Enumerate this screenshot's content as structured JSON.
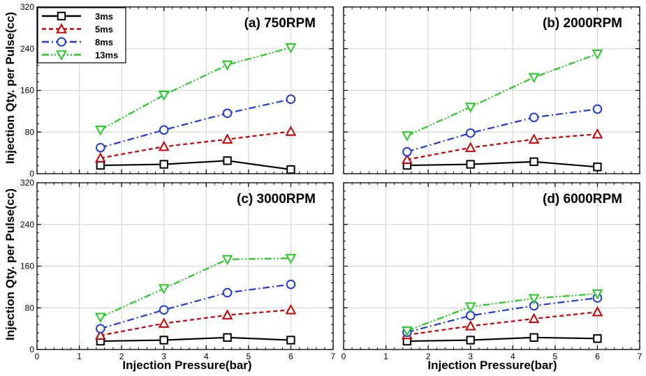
{
  "figure": {
    "ylabel": "Injection Qty. per Pulse(cc)",
    "xlabel": "Injection Pressure(bar)"
  },
  "legend": {
    "placement": "top-left of panel (a)",
    "entries": [
      {
        "label": "3ms",
        "color": "#000000",
        "marker": "square",
        "dash": "solid"
      },
      {
        "label": "5ms",
        "color": "#cc0000",
        "marker": "triangle-up",
        "dash": "dashed"
      },
      {
        "label": "8ms",
        "color": "#1f3bd8",
        "marker": "circle",
        "dash": "dashdot"
      },
      {
        "label": "13ms",
        "color": "#22cc22",
        "marker": "triangle-down",
        "dash": "dashdotdot"
      }
    ]
  },
  "chart_data": [
    {
      "type": "line",
      "title": "(a) 750RPM",
      "xlabel": "Injection Pressure(bar)",
      "ylabel": "Injection Qty. per Pulse(cc)",
      "xlim": [
        0,
        7
      ],
      "ylim": [
        0,
        320
      ],
      "xticks": [
        0,
        1,
        2,
        3,
        4,
        5,
        6,
        7
      ],
      "yticks": [
        0,
        80,
        160,
        240,
        320
      ],
      "grid": true,
      "x": [
        1.5,
        3,
        4.5,
        6
      ],
      "series": [
        {
          "name": "3ms",
          "values": [
            16,
            18,
            25,
            8
          ]
        },
        {
          "name": "5ms",
          "values": [
            30,
            52,
            66,
            81
          ]
        },
        {
          "name": "8ms",
          "values": [
            50,
            84,
            116,
            143
          ]
        },
        {
          "name": "13ms",
          "values": [
            84,
            151,
            209,
            242
          ]
        }
      ]
    },
    {
      "type": "line",
      "title": "(b) 2000RPM",
      "xlabel": "Injection Pressure(bar)",
      "ylabel": "Injection Qty. per Pulse(cc)",
      "xlim": [
        0,
        7
      ],
      "ylim": [
        0,
        320
      ],
      "xticks": [
        0,
        1,
        2,
        3,
        4,
        5,
        6,
        7
      ],
      "yticks": [
        0,
        80,
        160,
        240,
        320
      ],
      "grid": true,
      "x": [
        1.5,
        3,
        4.5,
        6
      ],
      "series": [
        {
          "name": "3ms",
          "values": [
            16,
            18,
            23,
            13
          ]
        },
        {
          "name": "5ms",
          "values": [
            27,
            50,
            66,
            76
          ]
        },
        {
          "name": "8ms",
          "values": [
            42,
            78,
            108,
            124
          ]
        },
        {
          "name": "13ms",
          "values": [
            73,
            128,
            185,
            230
          ]
        }
      ]
    },
    {
      "type": "line",
      "title": "(c) 3000RPM",
      "xlabel": "Injection Pressure(bar)",
      "ylabel": "Injection Qty. per Pulse(cc)",
      "xlim": [
        0,
        7
      ],
      "ylim": [
        0,
        320
      ],
      "xticks": [
        0,
        1,
        2,
        3,
        4,
        5,
        6,
        7
      ],
      "yticks": [
        0,
        80,
        160,
        240,
        320
      ],
      "grid": true,
      "x": [
        1.5,
        3,
        4.5,
        6
      ],
      "series": [
        {
          "name": "3ms",
          "values": [
            16,
            18,
            23,
            18
          ]
        },
        {
          "name": "5ms",
          "values": [
            27,
            50,
            66,
            76
          ]
        },
        {
          "name": "8ms",
          "values": [
            40,
            76,
            109,
            125
          ]
        },
        {
          "name": "13ms",
          "values": [
            62,
            117,
            173,
            175
          ]
        }
      ]
    },
    {
      "type": "line",
      "title": "(d) 6000RPM",
      "xlabel": "Injection Pressure(bar)",
      "ylabel": "Injection Qty. per Pulse(cc)",
      "xlim": [
        0,
        7
      ],
      "ylim": [
        0,
        320
      ],
      "xticks": [
        0,
        1,
        2,
        3,
        4,
        5,
        6,
        7
      ],
      "yticks": [
        0,
        80,
        160,
        240,
        320
      ],
      "grid": true,
      "x": [
        1.5,
        3,
        4.5,
        6
      ],
      "series": [
        {
          "name": "3ms",
          "values": [
            16,
            18,
            23,
            21
          ]
        },
        {
          "name": "5ms",
          "values": [
            28,
            45,
            59,
            72
          ]
        },
        {
          "name": "8ms",
          "values": [
            33,
            65,
            84,
            99
          ]
        },
        {
          "name": "13ms",
          "values": [
            36,
            82,
            98,
            107
          ]
        }
      ]
    }
  ]
}
